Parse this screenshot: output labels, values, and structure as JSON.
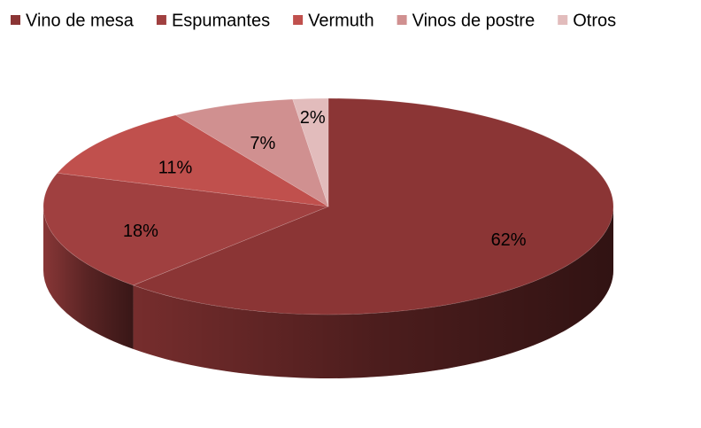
{
  "chart_data": {
    "type": "pie3d",
    "categories": [
      "Vino de mesa",
      "Espumantes",
      "Vermuth",
      "Vinos de postre",
      "Otros"
    ],
    "values": [
      62,
      18,
      11,
      7,
      2
    ],
    "value_labels": [
      "62%",
      "18%",
      "11%",
      "7%",
      "2%"
    ],
    "colors": [
      "#8b3535",
      "#a04040",
      "#c0504d",
      "#d09090",
      "#e2bcbc"
    ],
    "legend": "top"
  }
}
